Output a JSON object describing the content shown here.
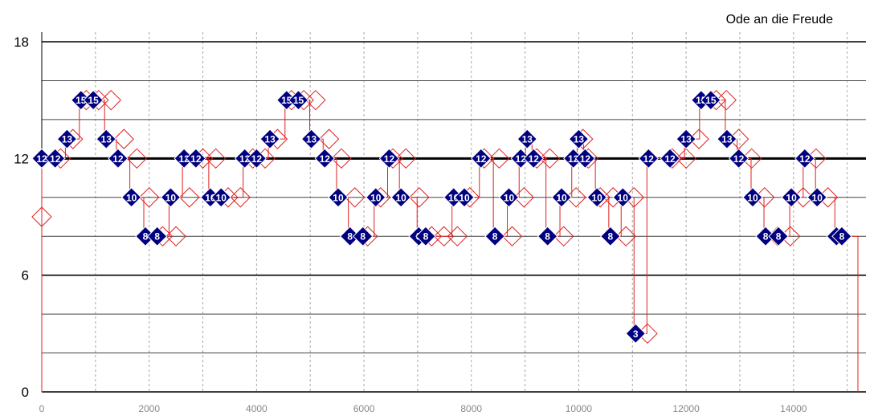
{
  "chart_data": {
    "type": "scatter",
    "title": "Ode an die Freude",
    "xlabel": "",
    "ylabel": "",
    "xlim": [
      0,
      15200
    ],
    "ylim": [
      0,
      18
    ],
    "x_ticks": [
      "0",
      "2000",
      "4000",
      "6000",
      "8000",
      "10000",
      "12000",
      "14000"
    ],
    "y_ticks": [
      "0",
      "6",
      "12",
      "18"
    ],
    "grid": true,
    "colors": {
      "marker": "#000080",
      "marker_outline": "#ffffff",
      "trace": "#e02020",
      "label": "#ffffff"
    },
    "series": [
      {
        "name": "",
        "points": [
          {
            "x": 0,
            "y": 12
          },
          {
            "x": 250,
            "y": 12
          },
          {
            "x": 470,
            "y": 13
          },
          {
            "x": 730,
            "y": 15
          },
          {
            "x": 960,
            "y": 15
          },
          {
            "x": 1200,
            "y": 13
          },
          {
            "x": 1420,
            "y": 12
          },
          {
            "x": 1670,
            "y": 10
          },
          {
            "x": 1930,
            "y": 8
          },
          {
            "x": 2150,
            "y": 8
          },
          {
            "x": 2400,
            "y": 10
          },
          {
            "x": 2650,
            "y": 12
          },
          {
            "x": 2870,
            "y": 12
          },
          {
            "x": 3140,
            "y": 10
          },
          {
            "x": 3340,
            "y": 10
          },
          {
            "x": 3780,
            "y": 12
          },
          {
            "x": 4000,
            "y": 12
          },
          {
            "x": 4250,
            "y": 13
          },
          {
            "x": 4560,
            "y": 15
          },
          {
            "x": 4780,
            "y": 15
          },
          {
            "x": 5020,
            "y": 13
          },
          {
            "x": 5270,
            "y": 12
          },
          {
            "x": 5520,
            "y": 10
          },
          {
            "x": 5740,
            "y": 8
          },
          {
            "x": 5980,
            "y": 8
          },
          {
            "x": 6220,
            "y": 10
          },
          {
            "x": 6470,
            "y": 12
          },
          {
            "x": 6690,
            "y": 10
          },
          {
            "x": 7020,
            "y": 8
          },
          {
            "x": 7150,
            "y": 8
          },
          {
            "x": 7670,
            "y": 10
          },
          {
            "x": 7870,
            "y": 10
          },
          {
            "x": 8180,
            "y": 12
          },
          {
            "x": 8440,
            "y": 8
          },
          {
            "x": 8700,
            "y": 10
          },
          {
            "x": 8920,
            "y": 12
          },
          {
            "x": 9040,
            "y": 13
          },
          {
            "x": 9160,
            "y": 12
          },
          {
            "x": 9420,
            "y": 8
          },
          {
            "x": 9680,
            "y": 10
          },
          {
            "x": 9900,
            "y": 12
          },
          {
            "x": 10000,
            "y": 13
          },
          {
            "x": 10120,
            "y": 12
          },
          {
            "x": 10340,
            "y": 10
          },
          {
            "x": 10590,
            "y": 8
          },
          {
            "x": 10820,
            "y": 10
          },
          {
            "x": 11060,
            "y": 3
          },
          {
            "x": 11300,
            "y": 12
          },
          {
            "x": 11700,
            "y": 12
          },
          {
            "x": 12000,
            "y": 13
          },
          {
            "x": 12280,
            "y": 15
          },
          {
            "x": 12460,
            "y": 15
          },
          {
            "x": 12760,
            "y": 13
          },
          {
            "x": 12980,
            "y": 12
          },
          {
            "x": 13240,
            "y": 10
          },
          {
            "x": 13480,
            "y": 8
          },
          {
            "x": 13720,
            "y": 8
          },
          {
            "x": 13960,
            "y": 10
          },
          {
            "x": 14210,
            "y": 12
          },
          {
            "x": 14440,
            "y": 10
          },
          {
            "x": 14800,
            "y": 8
          },
          {
            "x": 14900,
            "y": 8
          }
        ]
      }
    ],
    "hollow_markers": [
      {
        "x": 0,
        "y": 9
      },
      {
        "x": 350,
        "y": 12
      },
      {
        "x": 580,
        "y": 13
      },
      {
        "x": 830,
        "y": 15
      },
      {
        "x": 1060,
        "y": 15
      },
      {
        "x": 1290,
        "y": 15
      },
      {
        "x": 1530,
        "y": 13
      },
      {
        "x": 1770,
        "y": 12
      },
      {
        "x": 2000,
        "y": 10
      },
      {
        "x": 2250,
        "y": 8
      },
      {
        "x": 2500,
        "y": 8
      },
      {
        "x": 2750,
        "y": 10
      },
      {
        "x": 3000,
        "y": 12
      },
      {
        "x": 3240,
        "y": 12
      },
      {
        "x": 3470,
        "y": 10
      },
      {
        "x": 3700,
        "y": 10
      },
      {
        "x": 3930,
        "y": 12
      },
      {
        "x": 4160,
        "y": 12
      },
      {
        "x": 4390,
        "y": 13
      },
      {
        "x": 4650,
        "y": 15
      },
      {
        "x": 4880,
        "y": 15
      },
      {
        "x": 5100,
        "y": 15
      },
      {
        "x": 5350,
        "y": 13
      },
      {
        "x": 5580,
        "y": 12
      },
      {
        "x": 5830,
        "y": 10
      },
      {
        "x": 6070,
        "y": 8
      },
      {
        "x": 6310,
        "y": 10
      },
      {
        "x": 6540,
        "y": 12
      },
      {
        "x": 6780,
        "y": 12
      },
      {
        "x": 7030,
        "y": 10
      },
      {
        "x": 7260,
        "y": 8
      },
      {
        "x": 7490,
        "y": 8
      },
      {
        "x": 7740,
        "y": 8
      },
      {
        "x": 7970,
        "y": 10
      },
      {
        "x": 8240,
        "y": 12
      },
      {
        "x": 8520,
        "y": 12
      },
      {
        "x": 8760,
        "y": 8
      },
      {
        "x": 8980,
        "y": 10
      },
      {
        "x": 9220,
        "y": 12
      },
      {
        "x": 9460,
        "y": 12
      },
      {
        "x": 9720,
        "y": 8
      },
      {
        "x": 9950,
        "y": 10
      },
      {
        "x": 10080,
        "y": 13
      },
      {
        "x": 10180,
        "y": 12
      },
      {
        "x": 10400,
        "y": 10
      },
      {
        "x": 10640,
        "y": 10
      },
      {
        "x": 10880,
        "y": 8
      },
      {
        "x": 11030,
        "y": 10
      },
      {
        "x": 11280,
        "y": 3
      },
      {
        "x": 11740,
        "y": 12
      },
      {
        "x": 12000,
        "y": 12
      },
      {
        "x": 12240,
        "y": 13
      },
      {
        "x": 12560,
        "y": 15
      },
      {
        "x": 12750,
        "y": 15
      },
      {
        "x": 12980,
        "y": 13
      },
      {
        "x": 13220,
        "y": 12
      },
      {
        "x": 13460,
        "y": 10
      },
      {
        "x": 13710,
        "y": 8
      },
      {
        "x": 13940,
        "y": 8
      },
      {
        "x": 14180,
        "y": 10
      },
      {
        "x": 14420,
        "y": 12
      },
      {
        "x": 14640,
        "y": 10
      }
    ],
    "trace_end": 15200
  }
}
